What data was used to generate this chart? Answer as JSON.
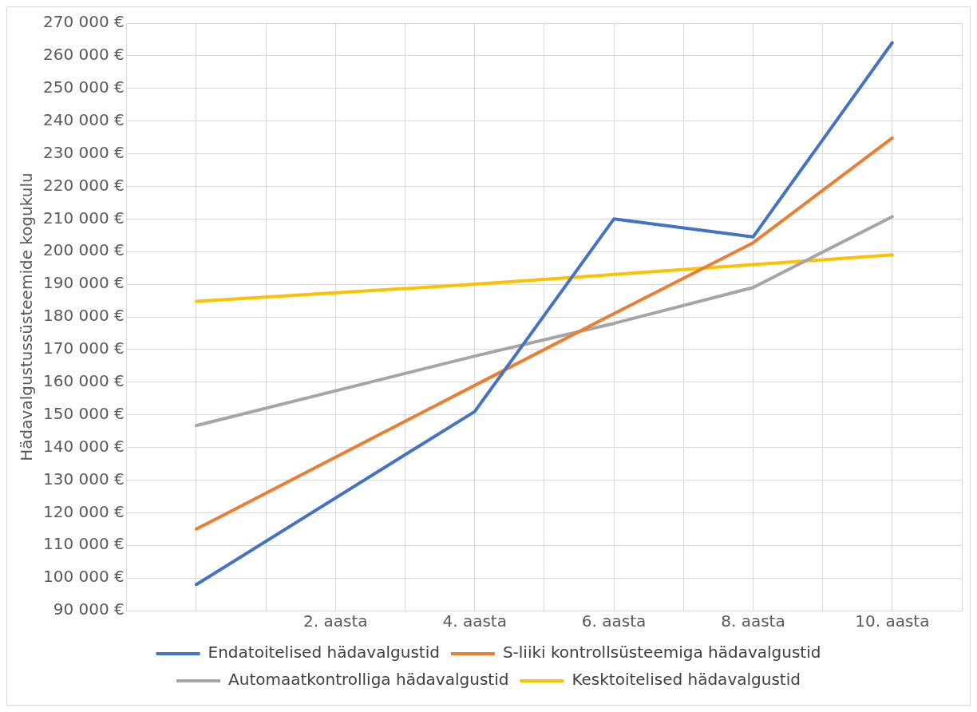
{
  "chart_data": {
    "type": "line",
    "ylabel": "Hädavalgustussüsteemide kogukulu",
    "x": [
      0,
      4,
      6,
      8,
      10
    ],
    "xlim": [
      -1,
      11
    ],
    "xticks": [
      {
        "value": 0,
        "label": null
      },
      {
        "value": 1,
        "label": null
      },
      {
        "value": 2,
        "label": "2. aasta"
      },
      {
        "value": 3,
        "label": null
      },
      {
        "value": 4,
        "label": "4. aasta"
      },
      {
        "value": 5,
        "label": null
      },
      {
        "value": 6,
        "label": "6. aasta"
      },
      {
        "value": 7,
        "label": null
      },
      {
        "value": 8,
        "label": "8. aasta"
      },
      {
        "value": 9,
        "label": null
      },
      {
        "value": 10,
        "label": "10. aasta"
      },
      {
        "value": 11,
        "label": null
      }
    ],
    "ylim": [
      90000,
      270000
    ],
    "yticks": [
      {
        "value": 90000,
        "label": "90 000 €"
      },
      {
        "value": 100000,
        "label": "100 000 €"
      },
      {
        "value": 110000,
        "label": "110 000 €"
      },
      {
        "value": 120000,
        "label": "120 000 €"
      },
      {
        "value": 130000,
        "label": "130 000 €"
      },
      {
        "value": 140000,
        "label": "140 000 €"
      },
      {
        "value": 150000,
        "label": "150 000 €"
      },
      {
        "value": 160000,
        "label": "160 000 €"
      },
      {
        "value": 170000,
        "label": "170 000 €"
      },
      {
        "value": 180000,
        "label": "180 000 €"
      },
      {
        "value": 190000,
        "label": "190 000 €"
      },
      {
        "value": 200000,
        "label": "200 000 €"
      },
      {
        "value": 210000,
        "label": "210 000 €"
      },
      {
        "value": 220000,
        "label": "220 000 €"
      },
      {
        "value": 230000,
        "label": "230 000 €"
      },
      {
        "value": 240000,
        "label": "240 000 €"
      },
      {
        "value": 250000,
        "label": "250 000 €"
      },
      {
        "value": 260000,
        "label": "260 000 €"
      },
      {
        "value": 270000,
        "label": "270 000 €"
      }
    ],
    "series": [
      {
        "name": "Endatoitelised hädavalgustid",
        "color": "#4472c4",
        "values": [
          98000,
          151000,
          210000,
          204500,
          264000
        ]
      },
      {
        "name": "S-liiki kontrollsüsteemiga hädavalgustid",
        "color": "#ed7d31",
        "values": [
          115000,
          159000,
          181000,
          202700,
          234800
        ]
      },
      {
        "name": "Automaatkontrolliga hädavalgustid",
        "color": "#a5a5a5",
        "values": [
          146700,
          168000,
          178000,
          189000,
          210700
        ]
      },
      {
        "name": "Kesktoitelised hädavalgustid",
        "color": "#ffc000",
        "values": [
          184800,
          190000,
          193000,
          196000,
          199000
        ]
      }
    ],
    "grid": true,
    "legend": "bottom",
    "marker": "none",
    "line_style": "solid"
  }
}
